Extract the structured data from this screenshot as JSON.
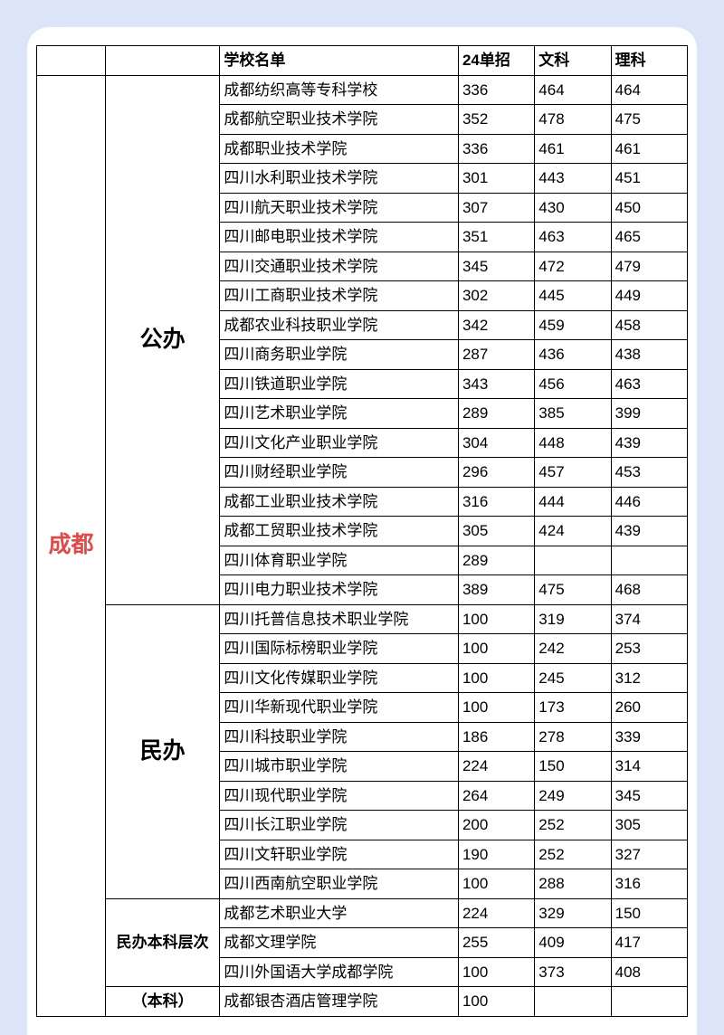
{
  "page_bg": "#dce5f7",
  "card_bg": "#ffffff",
  "border_color": "#000000",
  "city_color": "#e24a4a",
  "header": {
    "col3": "学校名单",
    "col4": "24单招",
    "col5": "文科",
    "col6": "理科"
  },
  "city": "成都",
  "groups": [
    {
      "label": "公办",
      "label_class": "cat-large",
      "rows": [
        {
          "name": "成都纺织高等专科学校",
          "a": "336",
          "b": "464",
          "c": "464"
        },
        {
          "name": "成都航空职业技术学院",
          "a": "352",
          "b": "478",
          "c": "475"
        },
        {
          "name": "成都职业技术学院",
          "a": "336",
          "b": "461",
          "c": "461"
        },
        {
          "name": "四川水利职业技术学院",
          "a": "301",
          "b": "443",
          "c": "451"
        },
        {
          "name": "四川航天职业技术学院",
          "a": "307",
          "b": "430",
          "c": "450"
        },
        {
          "name": "四川邮电职业技术学院",
          "a": "351",
          "b": "463",
          "c": "465"
        },
        {
          "name": "四川交通职业技术学院",
          "a": "345",
          "b": "472",
          "c": "479"
        },
        {
          "name": "四川工商职业技术学院",
          "a": "302",
          "b": "445",
          "c": "449"
        },
        {
          "name": "成都农业科技职业学院",
          "a": "342",
          "b": "459",
          "c": "458"
        },
        {
          "name": "四川商务职业学院",
          "a": "287",
          "b": "436",
          "c": "438"
        },
        {
          "name": "四川铁道职业学院",
          "a": "343",
          "b": "456",
          "c": "463"
        },
        {
          "name": "四川艺术职业学院",
          "a": "289",
          "b": "385",
          "c": "399"
        },
        {
          "name": "四川文化产业职业学院",
          "a": "304",
          "b": "448",
          "c": "439"
        },
        {
          "name": "四川财经职业学院",
          "a": "296",
          "b": "457",
          "c": "453"
        },
        {
          "name": "成都工业职业技术学院",
          "a": "316",
          "b": "444",
          "c": "446"
        },
        {
          "name": "成都工贸职业技术学院",
          "a": "305",
          "b": "424",
          "c": "439"
        },
        {
          "name": "四川体育职业学院",
          "a": "289",
          "b": "",
          "c": ""
        },
        {
          "name": "四川电力职业技术学院",
          "a": "389",
          "b": "475",
          "c": "468"
        }
      ]
    },
    {
      "label": "民办",
      "label_class": "cat-large",
      "rows": [
        {
          "name": "四川托普信息技术职业学院",
          "a": "100",
          "b": "319",
          "c": "374"
        },
        {
          "name": "四川国际标榜职业学院",
          "a": "100",
          "b": "242",
          "c": "253"
        },
        {
          "name": "四川文化传媒职业学院",
          "a": "100",
          "b": "245",
          "c": "312"
        },
        {
          "name": "四川华新现代职业学院",
          "a": "100",
          "b": "173",
          "c": "260"
        },
        {
          "name": "四川科技职业学院",
          "a": "186",
          "b": "278",
          "c": "339"
        },
        {
          "name": "四川城市职业学院",
          "a": "224",
          "b": "150",
          "c": "314"
        },
        {
          "name": "四川现代职业学院",
          "a": "264",
          "b": "249",
          "c": "345"
        },
        {
          "name": "四川长江职业学院",
          "a": "200",
          "b": "252",
          "c": "305"
        },
        {
          "name": "四川文轩职业学院",
          "a": "190",
          "b": "252",
          "c": "327"
        },
        {
          "name": "四川西南航空职业学院",
          "a": "100",
          "b": "288",
          "c": "316"
        }
      ]
    },
    {
      "label": "民办本科层次",
      "label_class": "cat-small",
      "rows": [
        {
          "name": "成都艺术职业大学",
          "a": "224",
          "b": "329",
          "c": "150"
        },
        {
          "name": "成都文理学院",
          "a": "255",
          "b": "409",
          "c": "417"
        },
        {
          "name": "四川外国语大学成都学院",
          "a": "100",
          "b": "373",
          "c": "408"
        }
      ]
    },
    {
      "label": "（本科）",
      "label_class": "cat-small",
      "rows": [
        {
          "name": "成都银杏酒店管理学院",
          "a": "100",
          "b": "",
          "c": ""
        }
      ]
    }
  ]
}
